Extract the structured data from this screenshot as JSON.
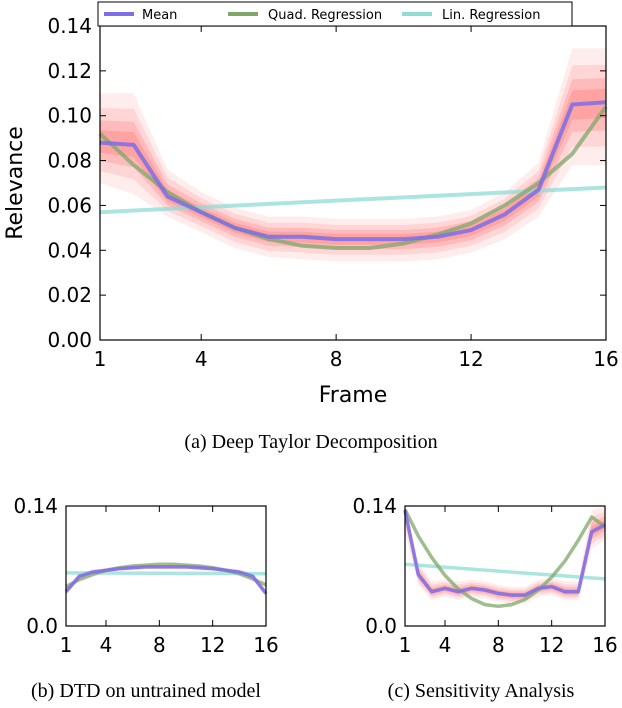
{
  "chart_data": [
    {
      "type": "line",
      "id": "main",
      "caption": "(a) Deep Taylor Decomposition",
      "xlabel": "Frame",
      "ylabel": "Relevance",
      "xlim": [
        1,
        16
      ],
      "ylim": [
        0,
        0.14
      ],
      "xticks": [
        1,
        4,
        8,
        12,
        16
      ],
      "yticks": [
        "0.00",
        "0.02",
        "0.04",
        "0.06",
        "0.08",
        "0.10",
        "0.12",
        "0.14"
      ],
      "legend": [
        "Mean",
        "Quad. Regression",
        "Lin. Regression"
      ],
      "series": [
        {
          "name": "Mean",
          "x": [
            1,
            2,
            3,
            4,
            5,
            6,
            7,
            8,
            9,
            10,
            11,
            12,
            13,
            14,
            15,
            16
          ],
          "values": [
            0.088,
            0.087,
            0.064,
            0.057,
            0.05,
            0.046,
            0.046,
            0.045,
            0.045,
            0.045,
            0.046,
            0.049,
            0.056,
            0.067,
            0.105,
            0.106
          ]
        },
        {
          "name": "Quad. Regression",
          "x": [
            1,
            2,
            3,
            4,
            5,
            6,
            7,
            8,
            9,
            10,
            11,
            12,
            13,
            14,
            15,
            16
          ],
          "values": [
            0.092,
            0.078,
            0.066,
            0.057,
            0.05,
            0.045,
            0.042,
            0.041,
            0.041,
            0.043,
            0.047,
            0.052,
            0.06,
            0.07,
            0.083,
            0.104
          ]
        },
        {
          "name": "Lin. Regression",
          "x": [
            1,
            16
          ],
          "values": [
            0.057,
            0.068
          ]
        }
      ],
      "band_lower": [
        0.07,
        0.065,
        0.055,
        0.048,
        0.041,
        0.037,
        0.036,
        0.035,
        0.035,
        0.035,
        0.036,
        0.039,
        0.045,
        0.055,
        0.078,
        0.078
      ],
      "band_upper": [
        0.11,
        0.11,
        0.076,
        0.066,
        0.059,
        0.055,
        0.055,
        0.054,
        0.054,
        0.054,
        0.055,
        0.058,
        0.066,
        0.079,
        0.13,
        0.13
      ]
    },
    {
      "type": "line",
      "id": "untrained",
      "caption": "(b) DTD on untrained model",
      "xlim": [
        1,
        16
      ],
      "ylim": [
        0,
        0.14
      ],
      "xticks": [
        1,
        4,
        8,
        12,
        16
      ],
      "yticks": [
        "0.0",
        "0.14"
      ],
      "series": [
        {
          "name": "Mean",
          "x": [
            1,
            2,
            3,
            4,
            5,
            6,
            7,
            8,
            9,
            10,
            11,
            12,
            13,
            14,
            15,
            16
          ],
          "values": [
            0.04,
            0.058,
            0.063,
            0.065,
            0.067,
            0.068,
            0.069,
            0.069,
            0.069,
            0.069,
            0.068,
            0.067,
            0.065,
            0.063,
            0.058,
            0.038
          ]
        },
        {
          "name": "Quad. Regression",
          "x": [
            1,
            2,
            3,
            4,
            5,
            6,
            7,
            8,
            9,
            10,
            11,
            12,
            13,
            14,
            15,
            16
          ],
          "values": [
            0.046,
            0.054,
            0.06,
            0.065,
            0.068,
            0.07,
            0.071,
            0.072,
            0.072,
            0.071,
            0.07,
            0.068,
            0.065,
            0.061,
            0.055,
            0.048
          ]
        },
        {
          "name": "Lin. Regression",
          "x": [
            1,
            16
          ],
          "values": [
            0.062,
            0.061
          ]
        }
      ],
      "band_lower": [
        0.036,
        0.054,
        0.06,
        0.062,
        0.064,
        0.065,
        0.066,
        0.066,
        0.066,
        0.066,
        0.065,
        0.064,
        0.062,
        0.06,
        0.054,
        0.034
      ],
      "band_upper": [
        0.044,
        0.062,
        0.066,
        0.068,
        0.07,
        0.071,
        0.072,
        0.072,
        0.072,
        0.072,
        0.071,
        0.07,
        0.068,
        0.066,
        0.062,
        0.042
      ]
    },
    {
      "type": "line",
      "id": "sensitivity",
      "caption": "(c) Sensitivity Analysis",
      "xlim": [
        1,
        16
      ],
      "ylim": [
        0,
        0.14
      ],
      "xticks": [
        1,
        4,
        8,
        12,
        16
      ],
      "yticks": [
        "0.0",
        "0.14"
      ],
      "series": [
        {
          "name": "Mean",
          "x": [
            1,
            2,
            3,
            4,
            5,
            6,
            7,
            8,
            9,
            10,
            11,
            12,
            13,
            14,
            15,
            16
          ],
          "values": [
            0.135,
            0.06,
            0.04,
            0.044,
            0.04,
            0.044,
            0.042,
            0.038,
            0.036,
            0.036,
            0.044,
            0.046,
            0.04,
            0.04,
            0.11,
            0.118
          ]
        },
        {
          "name": "Quad. Regression",
          "x": [
            1,
            2,
            3,
            4,
            5,
            6,
            7,
            8,
            9,
            10,
            11,
            12,
            13,
            14,
            15,
            16
          ],
          "values": [
            0.136,
            0.105,
            0.08,
            0.059,
            0.043,
            0.032,
            0.025,
            0.023,
            0.025,
            0.031,
            0.042,
            0.057,
            0.076,
            0.1,
            0.127,
            0.116
          ]
        },
        {
          "name": "Lin. Regression",
          "x": [
            1,
            16
          ],
          "values": [
            0.072,
            0.055
          ]
        }
      ],
      "band_lower": [
        0.11,
        0.048,
        0.03,
        0.034,
        0.03,
        0.034,
        0.032,
        0.028,
        0.026,
        0.026,
        0.034,
        0.036,
        0.03,
        0.03,
        0.09,
        0.1
      ],
      "band_upper": [
        0.14,
        0.075,
        0.052,
        0.054,
        0.052,
        0.054,
        0.052,
        0.048,
        0.046,
        0.046,
        0.054,
        0.056,
        0.052,
        0.052,
        0.135,
        0.14
      ]
    }
  ],
  "style": {
    "mean_color": "#7b6ee8",
    "quad_color": "#7ea86a",
    "lin_color": "#8fdcd6",
    "band_color": "#ff4a4a"
  }
}
